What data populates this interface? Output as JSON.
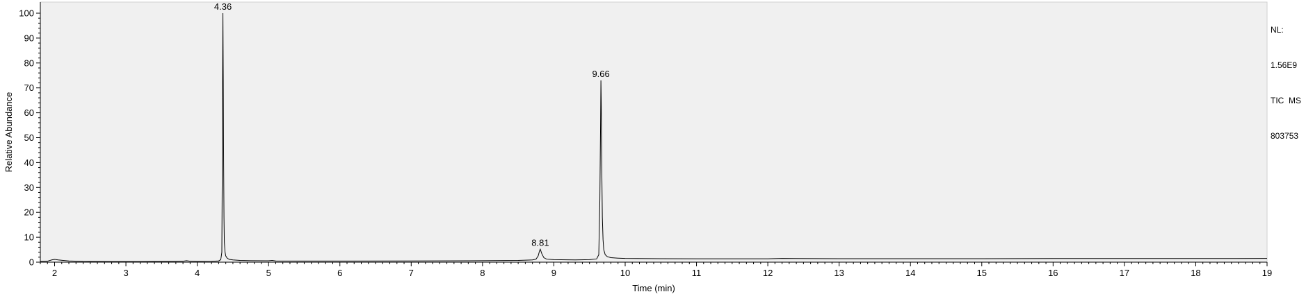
{
  "chart_data": {
    "type": "line",
    "xlabel": "Time (min)",
    "ylabel": "Relative Abundance",
    "xlim": [
      1.8,
      19.0
    ],
    "ylim": [
      0,
      100
    ],
    "x_ticks": [
      2,
      3,
      4,
      5,
      6,
      7,
      8,
      9,
      10,
      11,
      12,
      13,
      14,
      15,
      16,
      17,
      18,
      19
    ],
    "y_ticks": [
      0,
      10,
      20,
      30,
      40,
      50,
      60,
      70,
      80,
      90,
      100
    ],
    "grid": false,
    "series": [
      {
        "x": [
          1.8,
          1.9,
          1.96,
          2.0,
          2.05,
          2.12,
          2.2,
          2.4,
          2.8,
          3.2,
          3.6,
          3.8,
          3.85,
          3.9,
          4.0,
          4.2,
          4.3,
          4.33,
          4.345,
          4.35,
          4.355,
          4.36,
          4.365,
          4.37,
          4.375,
          4.38,
          4.39,
          4.4,
          4.42,
          4.45,
          4.5,
          4.6,
          4.75,
          5.0,
          5.05,
          5.1,
          5.5,
          6.0,
          7.0,
          7.8,
          8.0,
          8.5,
          8.7,
          8.75,
          8.78,
          8.8,
          8.81,
          8.83,
          8.86,
          8.9,
          9.0,
          9.3,
          9.5,
          9.6,
          9.63,
          9.645,
          9.655,
          9.66,
          9.665,
          9.672,
          9.68,
          9.69,
          9.7,
          9.72,
          9.75,
          9.8,
          9.9,
          10.0,
          10.5,
          11.0,
          12.0,
          12.2,
          13.0,
          14.0,
          15.0,
          16.0,
          17.0,
          18.0,
          19.0
        ],
        "y": [
          0.3,
          0.4,
          0.9,
          1.1,
          0.9,
          0.7,
          0.5,
          0.3,
          0.25,
          0.25,
          0.3,
          0.4,
          0.6,
          0.4,
          0.3,
          0.35,
          0.5,
          1.0,
          4.0,
          32.0,
          70.0,
          100.0,
          73.0,
          40.0,
          18.0,
          8.0,
          4.0,
          2.5,
          1.6,
          1.1,
          0.9,
          0.7,
          0.6,
          0.55,
          0.7,
          0.5,
          0.45,
          0.45,
          0.5,
          0.55,
          0.6,
          0.7,
          0.9,
          1.2,
          2.5,
          4.6,
          5.2,
          3.5,
          1.8,
          1.2,
          1.0,
          0.9,
          1.0,
          1.3,
          3.0,
          25.0,
          55.0,
          73.0,
          63.0,
          38.0,
          18.0,
          9.0,
          5.0,
          3.0,
          2.2,
          1.8,
          1.6,
          1.5,
          1.4,
          1.35,
          1.35,
          1.5,
          1.4,
          1.4,
          1.4,
          1.45,
          1.45,
          1.45,
          1.5
        ]
      }
    ],
    "peak_labels": [
      {
        "text": "4.36",
        "x": 4.36,
        "y": 100
      },
      {
        "text": "8.81",
        "x": 8.81,
        "y": 5.2
      },
      {
        "text": "9.66",
        "x": 9.66,
        "y": 73
      }
    ]
  },
  "info": {
    "nl_label": "NL:",
    "nl_value": "1.56E9",
    "filter": "TIC  MS",
    "sample": "803753"
  },
  "colors": {
    "plot_background": "#f0f0f0",
    "trace": "#000000",
    "page_background": "#ffffff"
  }
}
